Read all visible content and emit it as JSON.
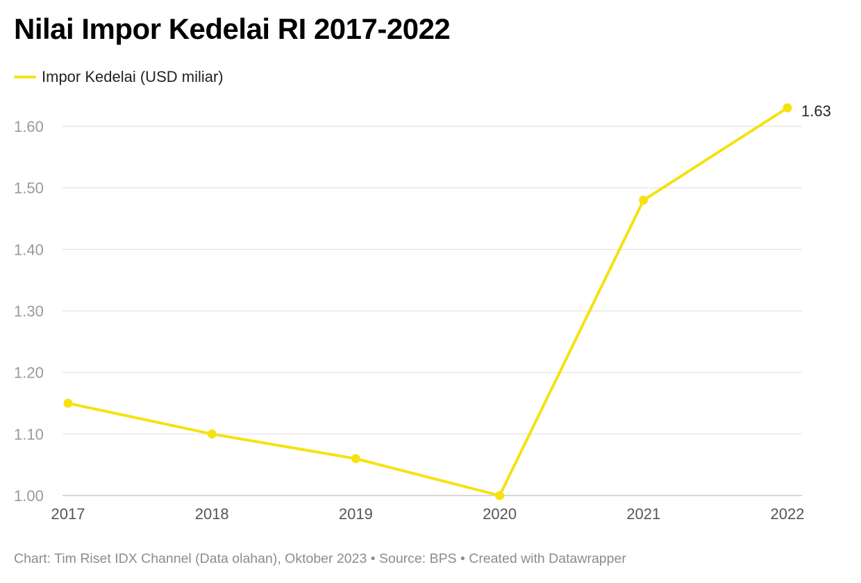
{
  "chart_data": {
    "type": "line",
    "title": "Nilai Impor Kedelai RI 2017-2022",
    "categories": [
      "2017",
      "2018",
      "2019",
      "2020",
      "2021",
      "2022"
    ],
    "series": [
      {
        "name": "Impor Kedelai (USD miliar)",
        "values": [
          1.15,
          1.1,
          1.06,
          1.0,
          1.48,
          1.63
        ],
        "color": "#f5e20f"
      }
    ],
    "ylim": [
      1.0,
      1.6
    ],
    "yticks": [
      "1.00",
      "1.10",
      "1.20",
      "1.30",
      "1.40",
      "1.50",
      "1.60"
    ],
    "grid": true,
    "legend_position": "top-left",
    "data_labels": [
      {
        "category": "2022",
        "text": "1.63"
      }
    ]
  },
  "footer": {
    "text": "Chart: Tim Riset IDX Channel (Data olahan), Oktober 2023 • Source: BPS • Created with Datawrapper"
  }
}
